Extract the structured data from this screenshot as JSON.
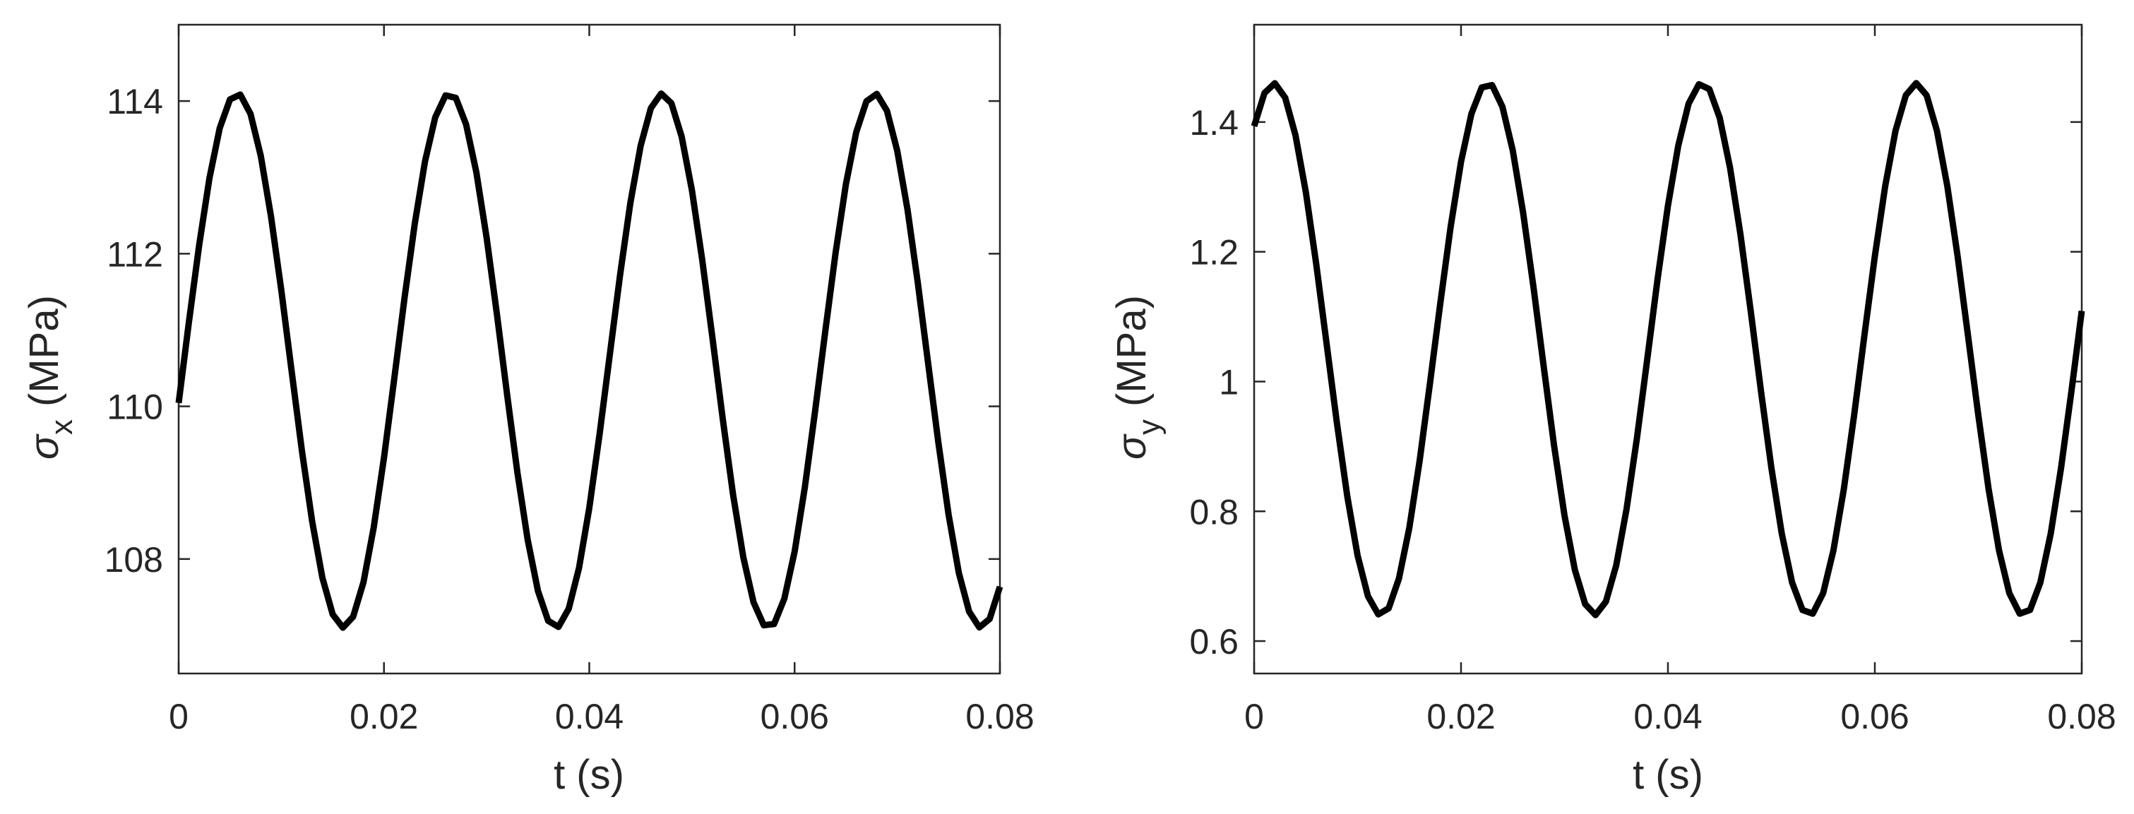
{
  "chart_data": [
    {
      "type": "line",
      "xlabel": "t (s)",
      "ylabel_symbol": "σ",
      "ylabel_subscript": "x",
      "ylabel_unit": "(MPa)",
      "xlim": [
        0,
        0.08
      ],
      "ylim": [
        106.5,
        115
      ],
      "xticks": [
        0,
        0.02,
        0.04,
        0.06,
        0.08
      ],
      "xtick_labels": [
        "0",
        "0.02",
        "0.04",
        "0.06",
        "0.08"
      ],
      "yticks": [
        108,
        110,
        112,
        114
      ],
      "ytick_labels": [
        "108",
        "110",
        "112",
        "114"
      ],
      "grid": false,
      "series": [
        {
          "color": "#000000",
          "form": "sinusoid",
          "mean": 110.6,
          "amplitude": 3.5,
          "period_s": 0.0207,
          "first_peak_t_s": 0.0057,
          "start_value": 110.0,
          "end_value": 107.4,
          "max": 114.1,
          "min": 107.1
        }
      ]
    },
    {
      "type": "line",
      "xlabel": "t (s)",
      "ylabel_symbol": "σ",
      "ylabel_subscript": "y",
      "ylabel_unit": "(MPa)",
      "xlim": [
        0,
        0.08
      ],
      "ylim": [
        0.55,
        1.55
      ],
      "xticks": [
        0,
        0.02,
        0.04,
        0.06,
        0.08
      ],
      "xtick_labels": [
        "0",
        "0.02",
        "0.04",
        "0.06",
        "0.08"
      ],
      "yticks": [
        0.6,
        0.8,
        1,
        1.2,
        1.4
      ],
      "ytick_labels": [
        "0.6",
        "0.8",
        "1",
        "1.2",
        "1.4"
      ],
      "grid": false,
      "series": [
        {
          "color": "#000000",
          "form": "sinusoid",
          "mean": 1.05,
          "amplitude": 0.41,
          "period_s": 0.0207,
          "first_peak_t_s": 0.0019,
          "start_value": 1.42,
          "end_value": 1.09,
          "max": 1.46,
          "min": 0.64
        }
      ]
    }
  ]
}
